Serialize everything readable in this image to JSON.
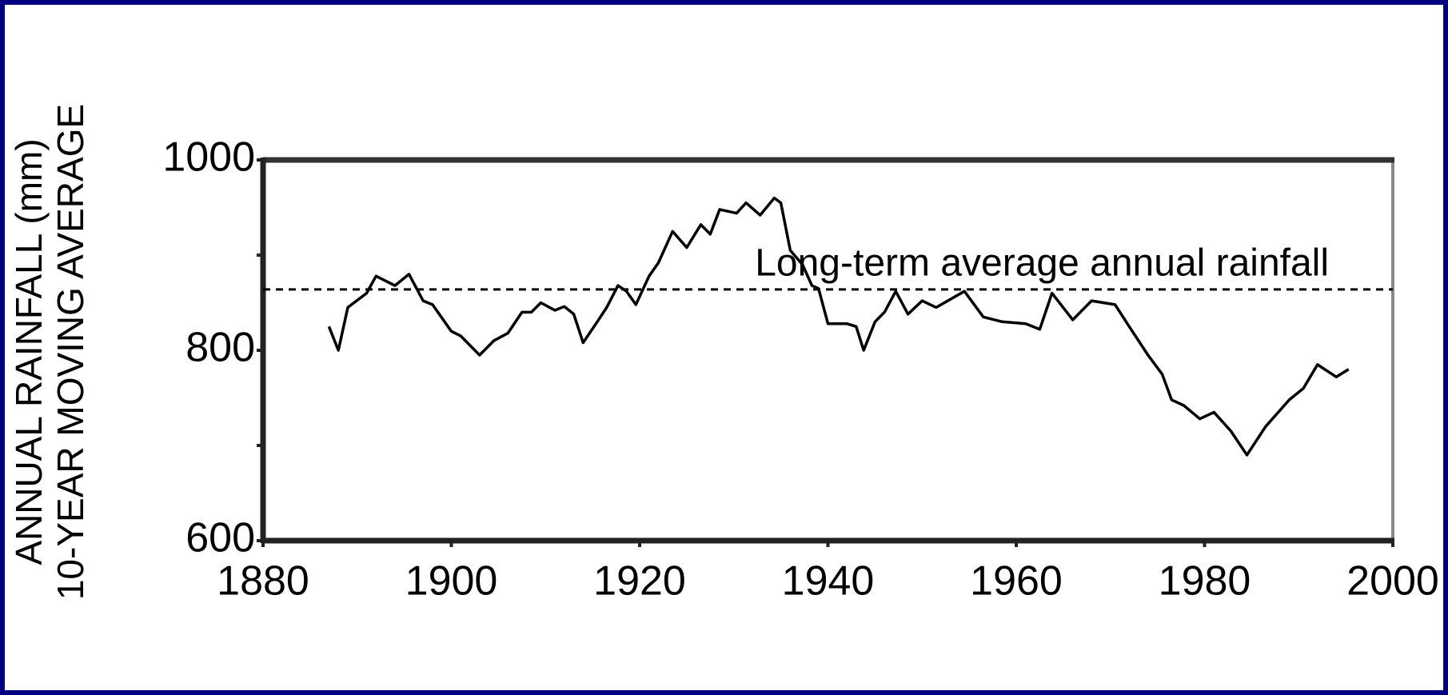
{
  "chart_data": {
    "type": "line",
    "ylabel": [
      "ANNUAL RAINFALL (mm)",
      "10-YEAR MOVING AVERAGE"
    ],
    "x": [
      1887,
      1888,
      1889,
      1891,
      1892,
      1894,
      1895.5,
      1897,
      1898,
      1900,
      1901,
      1903,
      1904.5,
      1906,
      1907.5,
      1908.5,
      1909.5,
      1911,
      1912,
      1913,
      1914,
      1915.5,
      1916.5,
      1917.7,
      1918.6,
      1919.6,
      1921,
      1922,
      1923.5,
      1925,
      1926.5,
      1927.5,
      1928.5,
      1930.3,
      1931.3,
      1932.8,
      1934.3,
      1935,
      1936,
      1937.3,
      1938.3,
      1939,
      1940,
      1942,
      1943,
      1943.8,
      1945,
      1946,
      1947.2,
      1948.5,
      1950,
      1951.5,
      1954.5,
      1956.5,
      1958.5,
      1961,
      1962.5,
      1963.8,
      1966,
      1968,
      1970.5,
      1972,
      1974,
      1975.5,
      1976.5,
      1977.8,
      1979.5,
      1981,
      1982.8,
      1984.5,
      1986.5,
      1989,
      1990.5,
      1992,
      1994,
      1995.3
    ],
    "values": [
      825,
      800,
      845,
      860,
      878,
      868,
      880,
      852,
      848,
      820,
      815,
      795,
      810,
      818,
      840,
      840,
      850,
      842,
      846,
      838,
      808,
      830,
      845,
      868,
      862,
      848,
      878,
      892,
      925,
      908,
      932,
      922,
      948,
      944,
      955,
      942,
      960,
      955,
      905,
      890,
      868,
      865,
      828,
      828,
      825,
      800,
      830,
      840,
      862,
      838,
      852,
      845,
      862,
      835,
      830,
      828,
      822,
      860,
      832,
      852,
      848,
      825,
      795,
      775,
      748,
      742,
      728,
      735,
      715,
      690,
      720,
      748,
      760,
      785,
      772,
      780
    ],
    "color": "#000000",
    "xlim": [
      1880,
      2000
    ],
    "xticks": [
      1880,
      1900,
      1920,
      1940,
      1960,
      1980,
      2000
    ],
    "ylim": [
      600,
      1000
    ],
    "yticks": [
      600,
      800,
      1000
    ],
    "yminor_ticks": [
      700,
      900
    ],
    "reference_line": {
      "value": 864,
      "label": "Long-term average annual rainfall",
      "style": "dashed"
    }
  }
}
